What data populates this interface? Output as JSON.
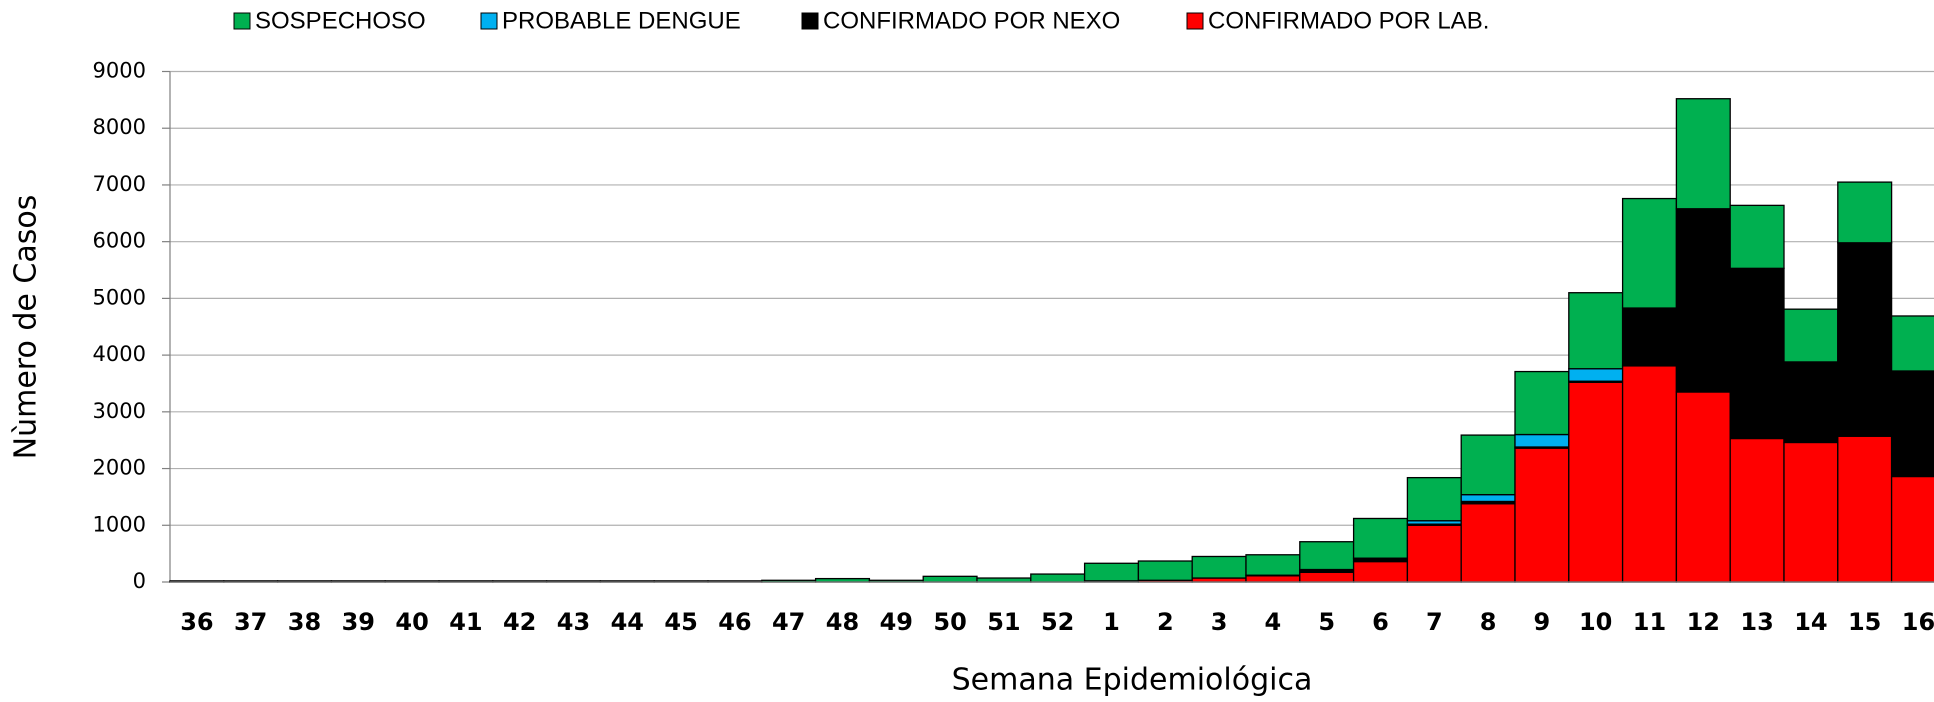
{
  "chart_data": {
    "type": "stacked_bar",
    "xlabel": "Semana Epidemiológica",
    "ylabel": "Nùmero de Casos",
    "categories": [
      "36",
      "37",
      "38",
      "39",
      "40",
      "41",
      "42",
      "43",
      "44",
      "45",
      "46",
      "47",
      "48",
      "49",
      "50",
      "51",
      "52",
      "1",
      "2",
      "3",
      "4",
      "5",
      "6",
      "7",
      "8",
      "9",
      "10",
      "11",
      "12",
      "13",
      "14",
      "15",
      "16"
    ],
    "series": [
      {
        "name": "SOSPECHOSO",
        "color": "#00b050",
        "values": [
          20,
          20,
          20,
          20,
          20,
          20,
          20,
          20,
          20,
          20,
          20,
          30,
          60,
          30,
          100,
          70,
          140,
          310,
          340,
          380,
          360,
          490,
          700,
          760,
          1050,
          1110,
          1340,
          1930,
          1940,
          1110,
          930,
          1070,
          970
        ]
      },
      {
        "name": "PROBABLE DENGUE",
        "color": "#00b0f0",
        "values": [
          0,
          0,
          0,
          0,
          0,
          0,
          0,
          0,
          0,
          0,
          0,
          0,
          0,
          0,
          0,
          0,
          0,
          0,
          0,
          0,
          0,
          0,
          10,
          60,
          120,
          220,
          220,
          0,
          0,
          0,
          0,
          0,
          0
        ]
      },
      {
        "name": "CONFIRMADO POR NEXO",
        "color": "#000000",
        "values": [
          0,
          0,
          0,
          0,
          0,
          0,
          0,
          0,
          0,
          0,
          0,
          0,
          0,
          0,
          0,
          0,
          0,
          0,
          0,
          0,
          10,
          50,
          50,
          20,
          40,
          20,
          20,
          1020,
          3230,
          3000,
          1420,
          3410,
          1860
        ]
      },
      {
        "name": "CONFIRMADO POR LAB.",
        "color": "#ff0000",
        "values": [
          0,
          0,
          0,
          0,
          0,
          0,
          0,
          0,
          0,
          0,
          0,
          0,
          0,
          0,
          0,
          0,
          0,
          20,
          30,
          70,
          110,
          170,
          360,
          1000,
          1380,
          2360,
          3520,
          3810,
          3350,
          2530,
          2460,
          2570,
          1860
        ]
      }
    ],
    "ylim": [
      0,
      9000
    ],
    "yticks": [
      0,
      1000,
      2000,
      3000,
      4000,
      5000,
      6000,
      7000,
      8000,
      9000
    ],
    "grid": true
  }
}
